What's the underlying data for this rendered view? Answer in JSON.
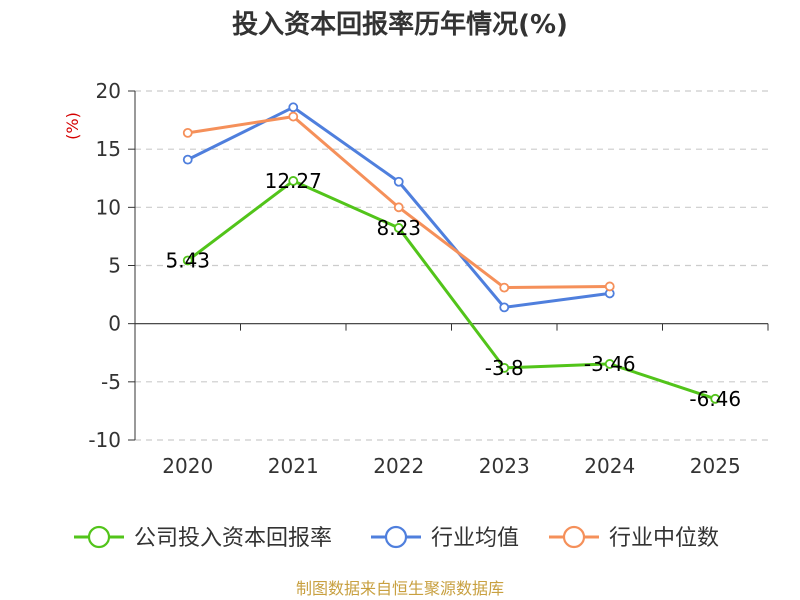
{
  "chart_data": {
    "type": "line",
    "title": "投入资本回报率历年情况(%)",
    "ylabel": "(%)",
    "xlabel": "",
    "categories": [
      "2020",
      "2021",
      "2022",
      "2023",
      "2024",
      "2025"
    ],
    "ylim": [
      -10,
      20
    ],
    "yticks": [
      20,
      15,
      10,
      5,
      0,
      -5,
      -10
    ],
    "grid": true,
    "legend_position": "bottom",
    "series": [
      {
        "name": "公司投入资本回报率",
        "color": "#52c41a",
        "values": [
          5.43,
          12.27,
          8.23,
          -3.8,
          -3.46,
          -6.46
        ],
        "labels": [
          "5.43",
          "12.27",
          "8.23",
          "-3.8",
          "-3.46",
          "-6.46"
        ]
      },
      {
        "name": "行业均值",
        "color": "#4f7fdd",
        "values": [
          14.1,
          18.6,
          12.2,
          1.4,
          2.6,
          null
        ]
      },
      {
        "name": "行业中位数",
        "color": "#f5905a",
        "values": [
          16.4,
          17.8,
          10.0,
          3.1,
          3.2,
          null
        ]
      }
    ],
    "source": "制图数据来自恒生聚源数据库"
  }
}
